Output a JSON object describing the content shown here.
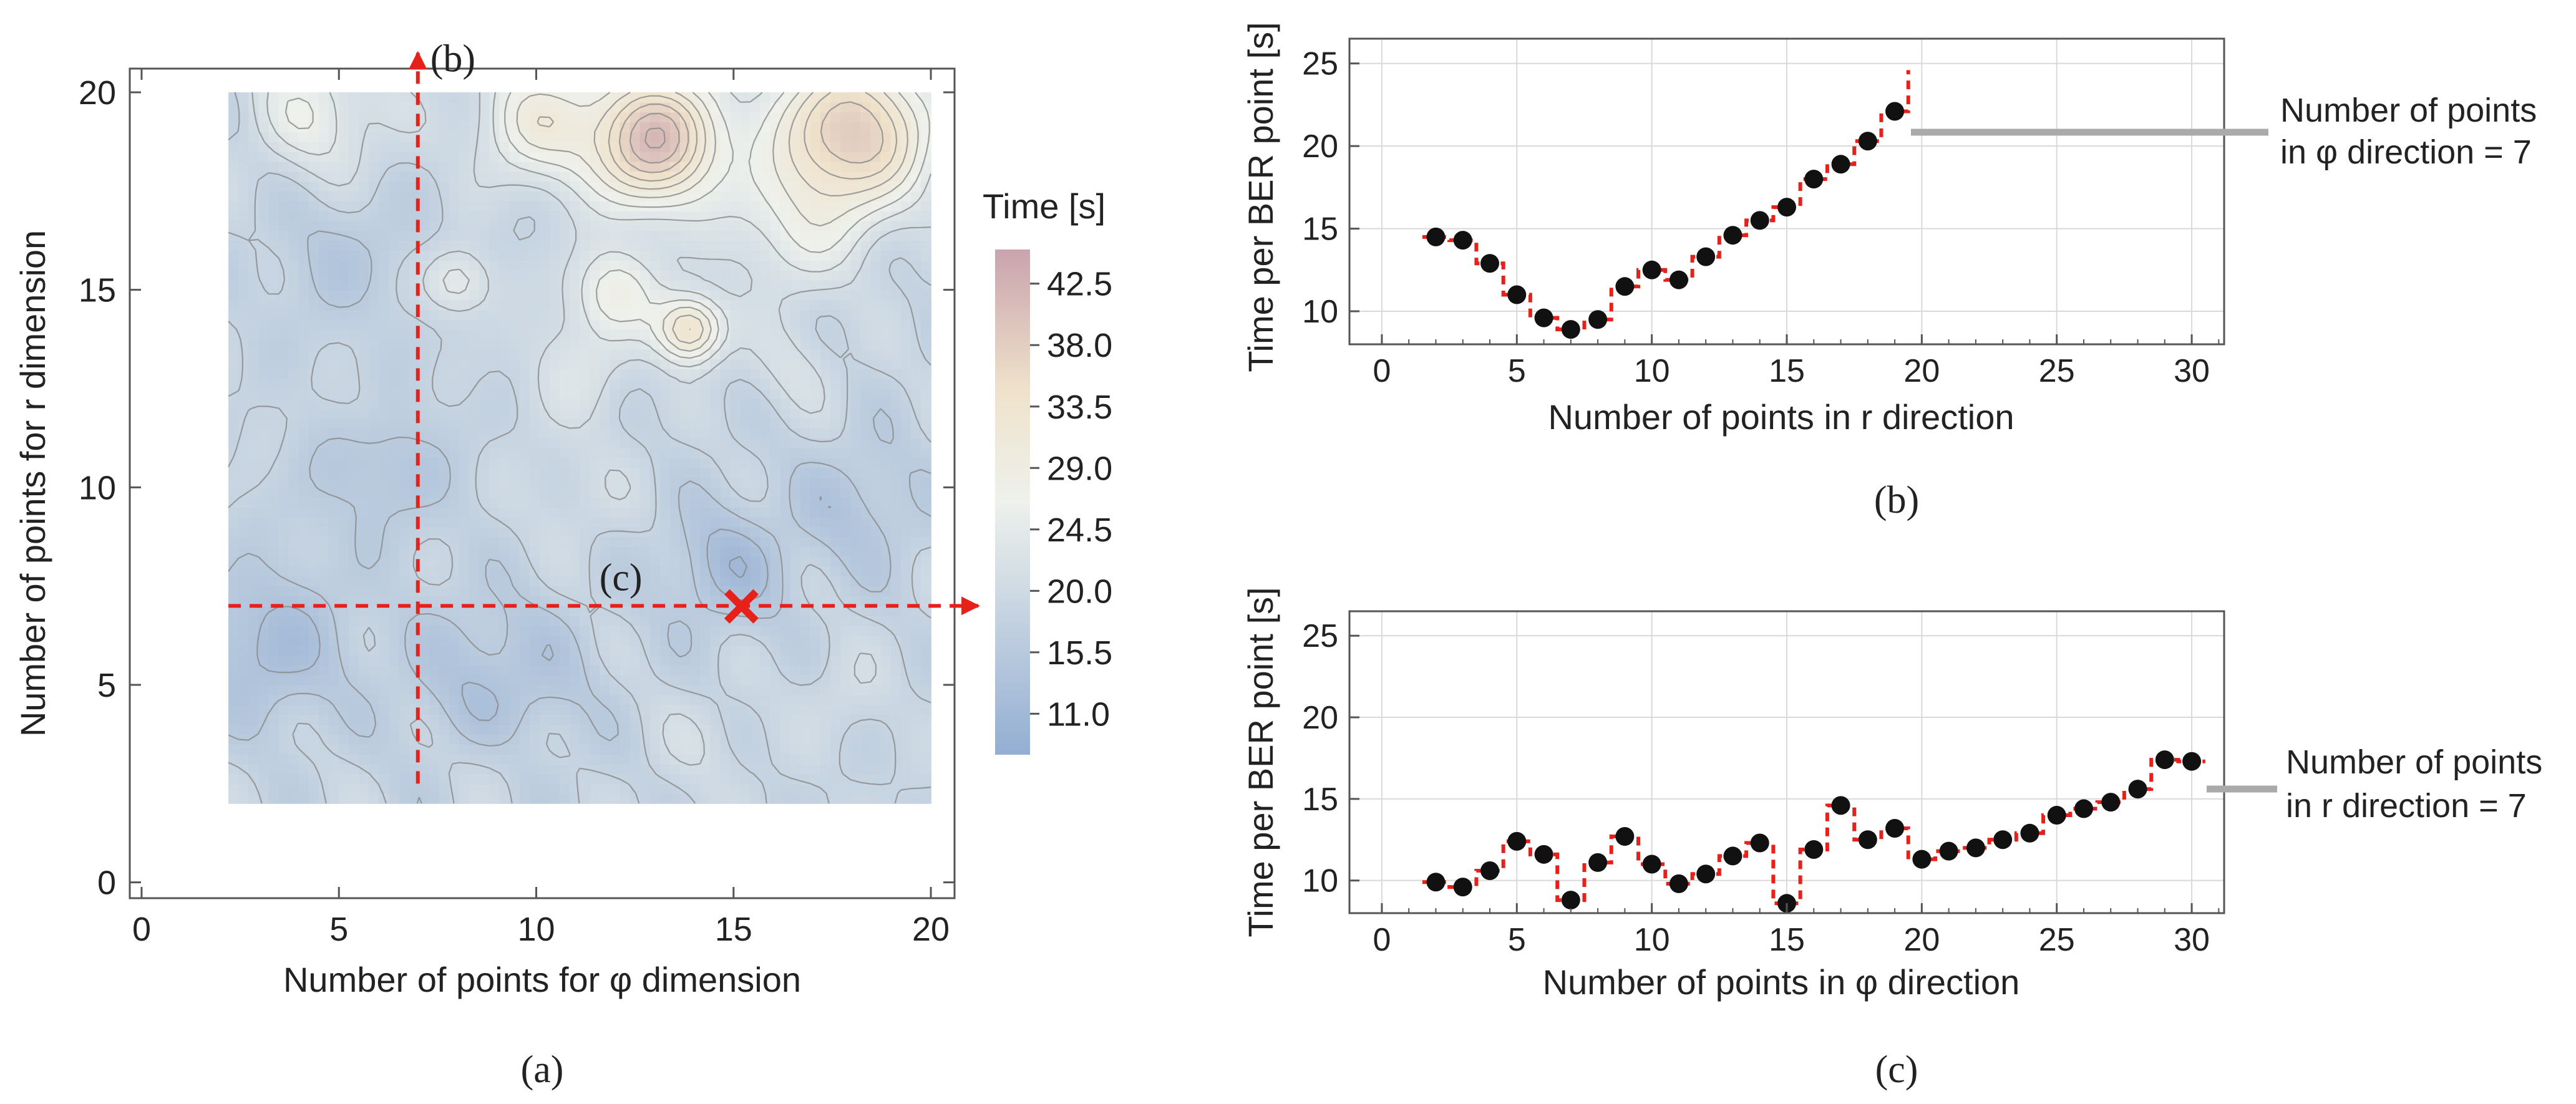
{
  "colors": {
    "accent_red": "#e8201a",
    "dot": "#111111",
    "grid": "#d9d9d9",
    "contour": "#8a8a8a",
    "gray_line": "#aaaaaa",
    "cmap_low": "#93aed3",
    "cmap_mid": "#eef1ec",
    "cmap_high": "#c9a3ad"
  },
  "chart_data": [
    {
      "id": "a",
      "type": "heatmap",
      "caption": "(a)",
      "xlabel": "Number of points for φ dimension",
      "ylabel": "Number of points for r dimension",
      "xlim": [
        -0.3,
        20.6
      ],
      "ylim": [
        -0.4,
        20.6
      ],
      "xticks": [
        0,
        5,
        10,
        15,
        20
      ],
      "yticks": [
        0,
        5,
        10,
        15,
        20
      ],
      "data_extent": {
        "x": [
          2.2,
          20
        ],
        "y": [
          2,
          20
        ]
      },
      "colorbar": {
        "title": "Time [s]",
        "ticks": [
          "42.5",
          "38.0",
          "33.5",
          "29.0",
          "24.5",
          "20.0",
          "15.5",
          "11.0"
        ],
        "range": [
          8,
          45
        ]
      },
      "annotations": {
        "line_b": {
          "x": 7,
          "y_from": 2.5,
          "y_to": 21,
          "label": "(b)"
        },
        "line_c": {
          "y": 7,
          "x_from": 2.2,
          "x_to": 21.2,
          "label": "(c)"
        },
        "marker": {
          "x": 15.2,
          "y": 7,
          "symbol": "×"
        }
      },
      "blobs": [
        {
          "x": 13,
          "y": 18.8,
          "amp": 22,
          "s": 1.2
        },
        {
          "x": 18,
          "y": 19,
          "amp": 20,
          "s": 1.4
        },
        {
          "x": 13.9,
          "y": 14,
          "amp": 16,
          "s": 0.6
        },
        {
          "x": 12,
          "y": 15,
          "amp": 9,
          "s": 0.8
        },
        {
          "x": 10,
          "y": 19.3,
          "amp": 10,
          "s": 1.1
        },
        {
          "x": 4.5,
          "y": 19.5,
          "amp": 7,
          "s": 1.2
        },
        {
          "x": 8,
          "y": 15.2,
          "amp": 7,
          "s": 0.6
        },
        {
          "x": 16.5,
          "y": 16.5,
          "amp": 6,
          "s": 1.2
        },
        {
          "x": 11,
          "y": 13,
          "amp": 4,
          "s": 1.0
        },
        {
          "x": 5.5,
          "y": 12,
          "amp": 2,
          "s": 0.6
        },
        {
          "x": 3.2,
          "y": 6,
          "amp": -6,
          "s": 1.4
        },
        {
          "x": 9,
          "y": 5,
          "amp": -5,
          "s": 1.6
        },
        {
          "x": 14.8,
          "y": 8,
          "amp": -6,
          "s": 1.1
        },
        {
          "x": 6,
          "y": 10.5,
          "amp": -4,
          "s": 1.3
        },
        {
          "x": 18.2,
          "y": 9.5,
          "amp": -4,
          "s": 1.2
        },
        {
          "x": 11,
          "y": 9.8,
          "amp": 2,
          "s": 1.0
        },
        {
          "x": 9,
          "y": 3.2,
          "amp": 2.5,
          "s": 0.8
        },
        {
          "x": 14.2,
          "y": 3.5,
          "amp": 2,
          "s": 0.9
        },
        {
          "x": 17.8,
          "y": 4.8,
          "amp": 2,
          "s": 0.8
        },
        {
          "x": 5,
          "y": 15.8,
          "amp": -3,
          "s": 1.3
        },
        {
          "x": 16.5,
          "y": 13,
          "amp": 3,
          "s": 0.8
        }
      ]
    },
    {
      "id": "b",
      "type": "scatter",
      "caption": "(b)",
      "xlabel": "Number of points in r direction",
      "ylabel": "Time per BER point [s]",
      "xlim": [
        -1.2,
        31.2
      ],
      "ylim": [
        8,
        26.5
      ],
      "xticks": [
        0,
        5,
        10,
        15,
        20,
        25,
        30
      ],
      "yticks": [
        10,
        15,
        20,
        25
      ],
      "x": [
        2,
        3,
        4,
        5,
        6,
        7,
        8,
        9,
        10,
        11,
        12,
        13,
        14,
        15,
        16,
        17,
        18,
        19
      ],
      "values": [
        14.5,
        14.3,
        12.9,
        11.0,
        9.6,
        8.9,
        9.5,
        11.5,
        12.5,
        11.9,
        13.3,
        14.6,
        15.5,
        16.3,
        18.0,
        18.9,
        20.3,
        22.1
      ],
      "step_end": {
        "x": 19.5,
        "y": 24.6
      },
      "note": [
        "Number of points",
        "in φ direction = 7"
      ]
    },
    {
      "id": "c",
      "type": "scatter",
      "caption": "(c)",
      "xlabel": "Number of points in φ direction",
      "ylabel": "Time per BER point [s]",
      "xlim": [
        -1.2,
        31.2
      ],
      "ylim": [
        8,
        26.5
      ],
      "xticks": [
        0,
        5,
        10,
        15,
        20,
        25,
        30
      ],
      "yticks": [
        10,
        15,
        20,
        25
      ],
      "x": [
        2,
        3,
        4,
        5,
        6,
        7,
        8,
        9,
        10,
        11,
        12,
        13,
        14,
        15,
        16,
        17,
        18,
        19,
        20,
        21,
        22,
        23,
        24,
        25,
        26,
        27,
        28,
        29,
        30
      ],
      "values": [
        9.9,
        9.6,
        10.6,
        12.4,
        11.6,
        8.8,
        11.1,
        12.7,
        11.0,
        9.8,
        10.4,
        11.5,
        12.3,
        8.6,
        11.9,
        14.6,
        12.5,
        13.2,
        11.3,
        11.8,
        12.0,
        12.5,
        12.9,
        14.0,
        14.4,
        14.8,
        15.6,
        17.4,
        17.3
      ],
      "step_start": {
        "x": 1.5
      },
      "note": [
        "Number of points",
        "in r direction = 7"
      ]
    }
  ]
}
